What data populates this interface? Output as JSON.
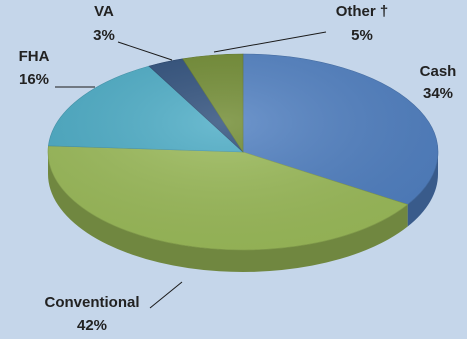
{
  "chart_data": {
    "type": "pie",
    "title": "",
    "slices": [
      {
        "label": "Cash",
        "value": 34,
        "value_label": "34%",
        "color": "#4f7fc1"
      },
      {
        "label": "Conventional",
        "value": 42,
        "value_label": "42%",
        "color": "#9bbb59"
      },
      {
        "label": "FHA",
        "value": 16,
        "value_label": "16%",
        "color": "#4bacc6"
      },
      {
        "label": "VA",
        "value": 3,
        "value_label": "3%",
        "color": "#2c4d7a"
      },
      {
        "label": "Other †",
        "value": 5,
        "value_label": "5%",
        "color": "#6f8a30"
      }
    ],
    "start": "top",
    "direction": "clockwise",
    "style": "3d-tilted",
    "legend": "none"
  }
}
